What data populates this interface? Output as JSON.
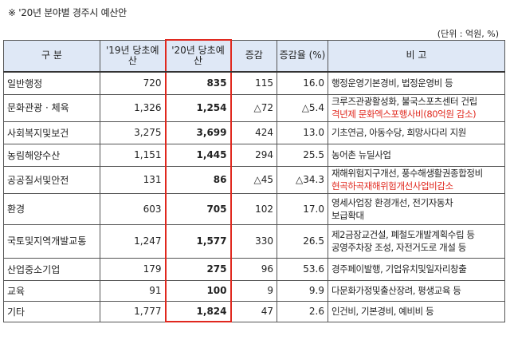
{
  "title": "※ '20년 분야별 경주시 예산안",
  "unit": "(단위 : 억원, %)",
  "headers": {
    "category": "구 분",
    "budget_2019": "'19년 당초예산",
    "budget_2020": "'20년 당초예산",
    "change": "증감",
    "rate": "증감율 (%)",
    "note": "비 고"
  },
  "rows": [
    {
      "category": "일반행정",
      "b2019": "720",
      "b2020": "835",
      "change": "115",
      "rate": "16.0",
      "note": [
        "행정운영기본경비, 법정운영비 등"
      ],
      "note_red": []
    },
    {
      "category": "문화관광 · 체육",
      "b2019": "1,326",
      "b2020": "1,254",
      "change": "△72",
      "rate": "△5.4",
      "note": [
        "크루즈관광활성화, 불국스포츠센터 건립"
      ],
      "note_red": [
        "격년제 문화엑스포행사비(80억원 감소)"
      ]
    },
    {
      "category": "사회복지및보건",
      "b2019": "3,275",
      "b2020": "3,699",
      "change": "424",
      "rate": "13.0",
      "note": [
        "기초연금, 아동수당, 희망사다리 지원"
      ],
      "note_red": []
    },
    {
      "category": "농림해양수산",
      "b2019": "1,151",
      "b2020": "1,445",
      "change": "294",
      "rate": "25.5",
      "note": [
        "농어촌 뉴딜사업"
      ],
      "note_red": []
    },
    {
      "category": "공공질서및안전",
      "b2019": "131",
      "b2020": "86",
      "change": "△45",
      "rate": "△34.3",
      "note": [
        "재해위험지구개선, 풍수해생활권종합정비"
      ],
      "note_red": [
        "현곡하곡재해위험개선사업비감소"
      ]
    },
    {
      "category": "환경",
      "b2019": "603",
      "b2020": "705",
      "change": "102",
      "rate": "17.0",
      "note": [
        "영세사업장 환경개선, 전기자동차",
        "보급확대"
      ],
      "note_red": []
    },
    {
      "category": "국토및지역개발교통",
      "b2019": "1,247",
      "b2020": "1,577",
      "change": "330",
      "rate": "26.5",
      "note": [
        "제2금장교건설, 폐철도개발계획수립 등",
        "공영주차장 조성, 자전거도로 개설 등"
      ],
      "note_red": []
    },
    {
      "category": "산업중소기업",
      "b2019": "179",
      "b2020": "275",
      "change": "96",
      "rate": "53.6",
      "note": [
        "경주페이발행, 기업유치및일자리창출"
      ],
      "note_red": []
    },
    {
      "category": "교육",
      "b2019": "91",
      "b2020": "100",
      "change": "9",
      "rate": "9.9",
      "note": [
        "다문화가정및출산장려, 평생교육 등"
      ],
      "note_red": []
    },
    {
      "category": "기타",
      "b2019": "1,777",
      "b2020": "1,824",
      "change": "47",
      "rate": "2.6",
      "note": [
        "인건비, 기본경비, 예비비 등"
      ],
      "note_red": []
    }
  ],
  "colors": {
    "highlight_border": "#e0281e",
    "header_bg": "#dfe8f6",
    "red_text": "#e0281e"
  }
}
